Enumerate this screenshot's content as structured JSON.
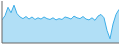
{
  "chart_data": {
    "type": "area",
    "x": [
      0,
      1,
      2,
      3,
      4,
      5,
      6,
      7,
      8,
      9,
      10,
      11,
      12,
      13,
      14,
      15,
      16,
      17,
      18,
      19,
      20,
      21,
      22,
      23,
      24,
      25,
      26,
      27,
      28,
      29,
      30,
      31,
      32,
      33,
      34,
      35,
      36,
      37,
      38,
      39
    ],
    "values": [
      55,
      65,
      85,
      72,
      90,
      70,
      62,
      58,
      63,
      57,
      62,
      56,
      60,
      57,
      62,
      58,
      56,
      60,
      55,
      58,
      56,
      62,
      60,
      57,
      64,
      60,
      58,
      63,
      57,
      55,
      60,
      54,
      64,
      68,
      60,
      30,
      10,
      45,
      68,
      80
    ],
    "xlim": [
      0,
      39
    ],
    "ylim": [
      0,
      100
    ],
    "color": "#3daee8",
    "tick_labels": false
  }
}
